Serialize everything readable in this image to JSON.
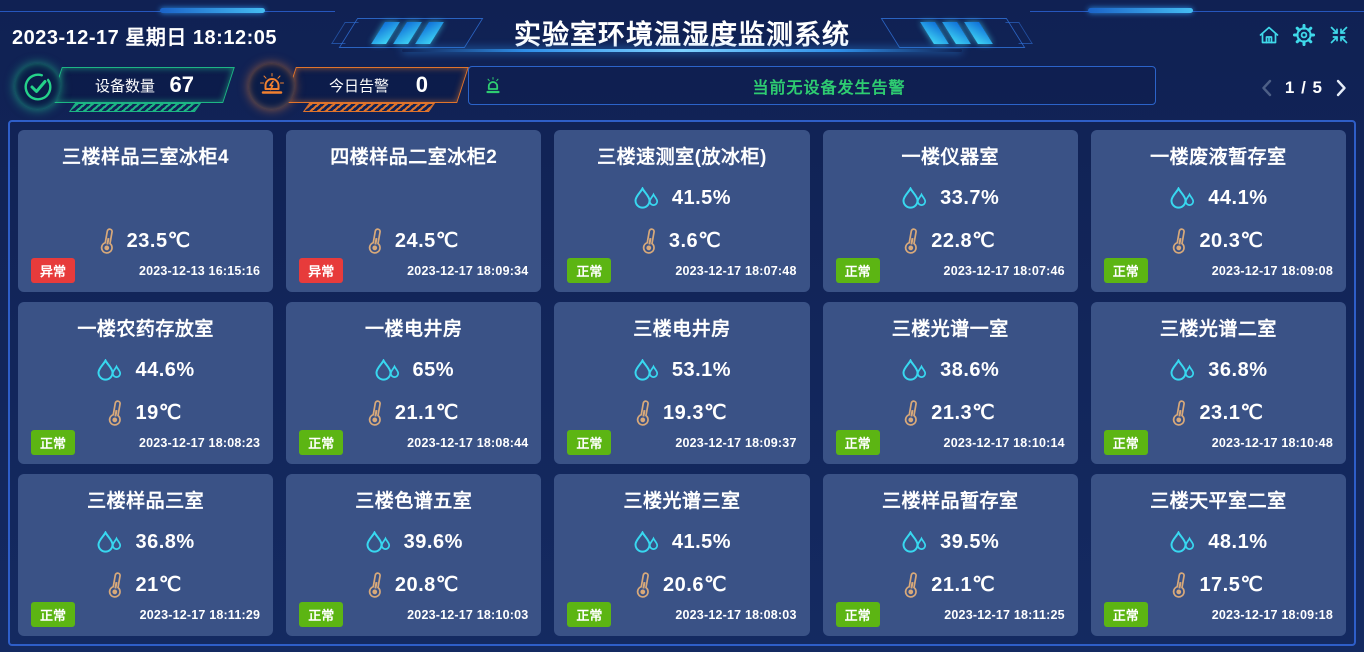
{
  "header": {
    "datetime": "2023-12-17 星期日 18:12:05",
    "title": "实验室环境温湿度监测系统",
    "icons": [
      "home-icon",
      "settings-icon",
      "fullscreen-icon"
    ]
  },
  "stats": {
    "device_count_label": "设备数量",
    "device_count_value": "67",
    "alarm_label": "今日告警",
    "alarm_value": "0"
  },
  "alert_bar": {
    "icon": "alarm-beacon-icon",
    "message": "当前无设备发生告警"
  },
  "pagination": {
    "page_text": "1 / 5",
    "current_page": "1",
    "total_pages": "5"
  },
  "cards": [
    {
      "title": "三楼样品三室冰柜4",
      "humidity": null,
      "temperature": "23.5℃",
      "status": "异常",
      "status_type": "error",
      "timestamp": "2023-12-13 16:15:16"
    },
    {
      "title": "四楼样品二室冰柜2",
      "humidity": null,
      "temperature": "24.5℃",
      "status": "异常",
      "status_type": "error",
      "timestamp": "2023-12-17 18:09:34"
    },
    {
      "title": "三楼速测室(放冰柜)",
      "humidity": "41.5%",
      "temperature": "3.6℃",
      "status": "正常",
      "status_type": "ok",
      "timestamp": "2023-12-17 18:07:48"
    },
    {
      "title": "一楼仪器室",
      "humidity": "33.7%",
      "temperature": "22.8℃",
      "status": "正常",
      "status_type": "ok",
      "timestamp": "2023-12-17 18:07:46"
    },
    {
      "title": "一楼废液暂存室",
      "humidity": "44.1%",
      "temperature": "20.3℃",
      "status": "正常",
      "status_type": "ok",
      "timestamp": "2023-12-17 18:09:08"
    },
    {
      "title": "一楼农药存放室",
      "humidity": "44.6%",
      "temperature": "19℃",
      "status": "正常",
      "status_type": "ok",
      "timestamp": "2023-12-17 18:08:23"
    },
    {
      "title": "一楼电井房",
      "humidity": "65%",
      "temperature": "21.1℃",
      "status": "正常",
      "status_type": "ok",
      "timestamp": "2023-12-17 18:08:44"
    },
    {
      "title": "三楼电井房",
      "humidity": "53.1%",
      "temperature": "19.3℃",
      "status": "正常",
      "status_type": "ok",
      "timestamp": "2023-12-17 18:09:37"
    },
    {
      "title": "三楼光谱一室",
      "humidity": "38.6%",
      "temperature": "21.3℃",
      "status": "正常",
      "status_type": "ok",
      "timestamp": "2023-12-17 18:10:14"
    },
    {
      "title": "三楼光谱二室",
      "humidity": "36.8%",
      "temperature": "23.1℃",
      "status": "正常",
      "status_type": "ok",
      "timestamp": "2023-12-17 18:10:48"
    },
    {
      "title": "三楼样品三室",
      "humidity": "36.8%",
      "temperature": "21℃",
      "status": "正常",
      "status_type": "ok",
      "timestamp": "2023-12-17 18:11:29"
    },
    {
      "title": "三楼色谱五室",
      "humidity": "39.6%",
      "temperature": "20.8℃",
      "status": "正常",
      "status_type": "ok",
      "timestamp": "2023-12-17 18:10:03"
    },
    {
      "title": "三楼光谱三室",
      "humidity": "41.5%",
      "temperature": "20.6℃",
      "status": "正常",
      "status_type": "ok",
      "timestamp": "2023-12-17 18:08:03"
    },
    {
      "title": "三楼样品暂存室",
      "humidity": "39.5%",
      "temperature": "21.1℃",
      "status": "正常",
      "status_type": "ok",
      "timestamp": "2023-12-17 18:11:25"
    },
    {
      "title": "三楼天平室二室",
      "humidity": "48.1%",
      "temperature": "17.5℃",
      "status": "正常",
      "status_type": "ok",
      "timestamp": "2023-12-17 18:09:18"
    }
  ],
  "icon_names": {
    "humidity": "water-drops-icon",
    "temperature": "thermometer-icon",
    "device_stat": "check-circle-icon",
    "alarm_stat": "alarm-light-icon"
  },
  "colors": {
    "background": "#122457",
    "card_background": "#3a5286",
    "panel_border": "#2e5ec8",
    "status_ok": "#5cb513",
    "status_error": "#e73b3b",
    "humidity_icon": "#38d8f0",
    "temperature_icon": "#d8a97a",
    "alert_text": "#2ecc71",
    "device_accent": "#1db584",
    "alarm_accent": "#e0742c",
    "header_icon": "#3fd9ea"
  }
}
